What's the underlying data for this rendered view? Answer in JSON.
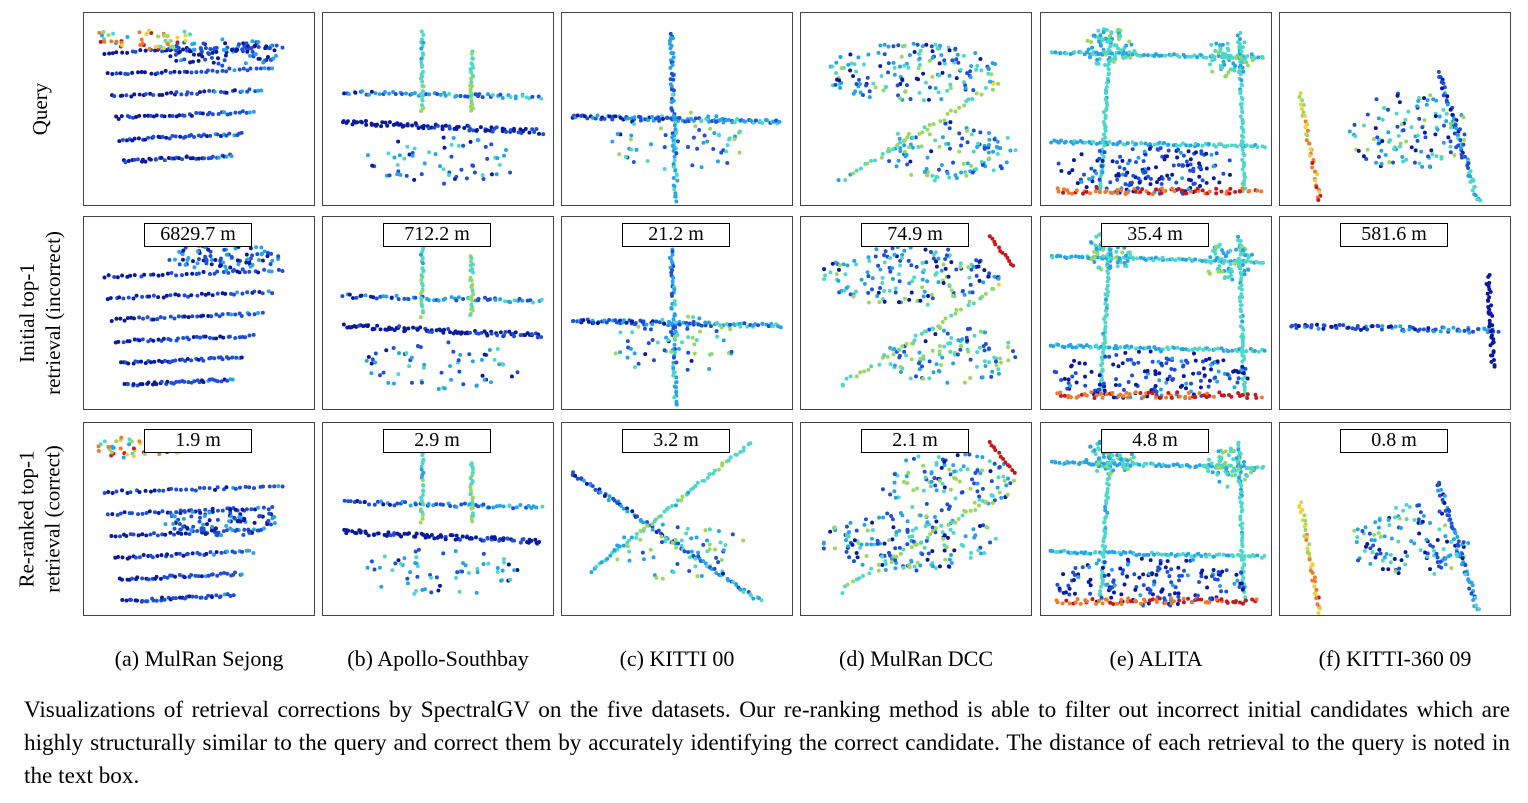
{
  "figure": {
    "row_labels": [
      {
        "lines": [
          "Query"
        ]
      },
      {
        "lines": [
          "Initial top-1",
          "retrieval (incorrect)"
        ]
      },
      {
        "lines": [
          "Re-ranked top-1",
          "retrieval (correct)"
        ]
      }
    ],
    "columns": [
      {
        "caption": "(a) MulRan Sejong",
        "distances": [
          "6829.7 m",
          "1.9 m"
        ]
      },
      {
        "caption": "(b) Apollo-Southbay",
        "distances": [
          "712.2 m",
          "2.9 m"
        ]
      },
      {
        "caption": "(c) KITTI 00",
        "distances": [
          "21.2 m",
          "3.2 m"
        ]
      },
      {
        "caption": "(d) MulRan DCC",
        "distances": [
          "74.9 m",
          "2.1 m"
        ]
      },
      {
        "caption": "(e) ALITA",
        "distances": [
          "35.4 m",
          "4.8 m"
        ]
      },
      {
        "caption": "(f) KITTI-360 09",
        "distances": [
          "581.6 m",
          "0.8 m"
        ]
      }
    ],
    "point_colormap": [
      "#0a1a9a",
      "#1f4fd6",
      "#27a3e8",
      "#4fd8c8",
      "#9ad860",
      "#f0d040",
      "#f07a2a",
      "#c8181c"
    ],
    "caption": "Visualizations of retrieval corrections by SpectralGV on the five datasets. Our re-ranking method is able to filter out incorrect initial candidates which are highly structurally similar to the query and correct them by accurately identifying the correct candidate. The distance of each retrieval to the query is noted in the text box."
  }
}
